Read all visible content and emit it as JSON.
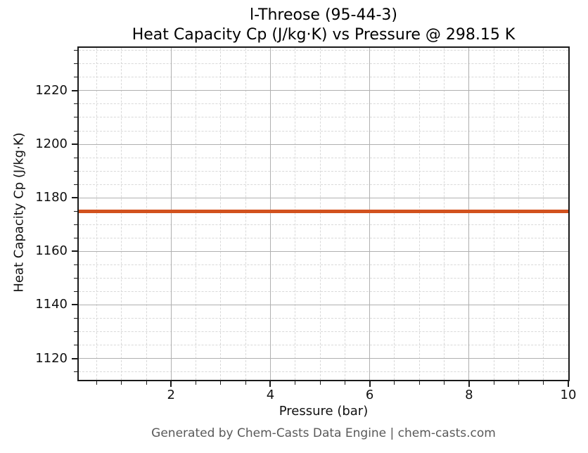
{
  "header": {
    "title_line1": "l-Threose (95-44-3)",
    "title_line2": "Heat Capacity Cp (J/kg·K) vs Pressure @ 298.15 K"
  },
  "footer": {
    "text": "Generated by Chem-Casts Data Engine | chem-casts.com"
  },
  "chart_data": {
    "type": "line",
    "title": "l-Threose (95-44-3)",
    "subtitle": "Heat Capacity Cp (J/kg·K) vs Pressure @ 298.15 K",
    "xlabel": "Pressure (bar)",
    "ylabel": "Heat Capacity Cp (J/kg·K)",
    "xlim": [
      0.14,
      10.0
    ],
    "ylim": [
      1112,
      1236
    ],
    "x_ticks": [
      2,
      4,
      6,
      8,
      10
    ],
    "y_ticks": [
      1120,
      1140,
      1160,
      1180,
      1200,
      1220
    ],
    "x_minor_step": 0.5,
    "y_minor_step": 5,
    "grid": {
      "major": "solid",
      "minor": "dashed"
    },
    "legend": "none",
    "series": [
      {
        "name": "Heat Capacity Cp",
        "color": "#d2521e",
        "constant_value": 1174.9,
        "points": [
          {
            "x": 0.14,
            "y": 1174.9
          },
          {
            "x": 10.0,
            "y": 1174.9
          }
        ]
      }
    ]
  },
  "colors": {
    "series_line": "#d2521e",
    "grid_major": "#b0b0b0",
    "grid_minor": "#d9d9d9",
    "spine": "#1a1a1a",
    "title_text": "#000000",
    "tick_text": "#111111",
    "footer_text": "#595959",
    "background": "#ffffff"
  }
}
